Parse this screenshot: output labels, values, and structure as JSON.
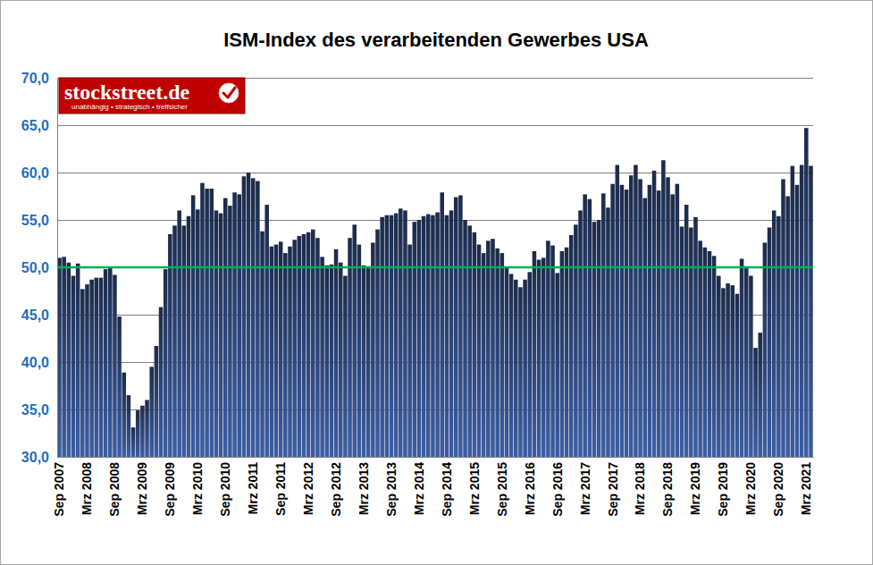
{
  "chart_data": {
    "type": "bar",
    "title": "ISM-Index des verarbeitenden Gewerbes USA",
    "annotations": [
      "stockstreet.de",
      "unabhängig • strategisch • treffsicher"
    ],
    "categories": [
      "Sep 2007",
      null,
      null,
      null,
      null,
      null,
      "Mrz 2008",
      null,
      null,
      null,
      null,
      null,
      "Sep 2008",
      null,
      null,
      null,
      null,
      null,
      "Mrz 2009",
      null,
      null,
      null,
      null,
      null,
      "Sep 2009",
      null,
      null,
      null,
      null,
      null,
      "Mrz 2010",
      null,
      null,
      null,
      null,
      null,
      "Sep 2010",
      null,
      null,
      null,
      null,
      null,
      "Mrz 2011",
      null,
      null,
      null,
      null,
      null,
      "Sep 2011",
      null,
      null,
      null,
      null,
      null,
      "Mrz 2012",
      null,
      null,
      null,
      null,
      null,
      "Sep 2012",
      null,
      null,
      null,
      null,
      null,
      "Mrz 2013",
      null,
      null,
      null,
      null,
      null,
      "Sep 2013",
      null,
      null,
      null,
      null,
      null,
      "Mrz 2014",
      null,
      null,
      null,
      null,
      null,
      "Sep 2014",
      null,
      null,
      null,
      null,
      null,
      "Mrz 2015",
      null,
      null,
      null,
      null,
      null,
      "Sep 2015",
      null,
      null,
      null,
      null,
      null,
      "Mrz 2016",
      null,
      null,
      null,
      null,
      null,
      "Sep 2016",
      null,
      null,
      null,
      null,
      null,
      "Mrz 2017",
      null,
      null,
      null,
      null,
      null,
      "Sep 2017",
      null,
      null,
      null,
      null,
      null,
      "Mrz 2018",
      null,
      null,
      null,
      null,
      null,
      "Sep 2018",
      null,
      null,
      null,
      null,
      null,
      "Mrz 2019",
      null,
      null,
      null,
      null,
      null,
      "Sep 2019",
      null,
      null,
      null,
      null,
      null,
      "Mrz 2020",
      null,
      null,
      null,
      null,
      null,
      "Sep 2020",
      null,
      null,
      null,
      null,
      null,
      "Mrz 2021",
      null
    ],
    "values": [
      51.0,
      51.1,
      50.5,
      49.1,
      50.4,
      47.7,
      48.2,
      48.7,
      48.9,
      48.9,
      49.8,
      50.0,
      49.2,
      44.8,
      38.9,
      36.5,
      33.1,
      34.9,
      35.4,
      36.0,
      39.5,
      41.7,
      45.8,
      49.8,
      53.5,
      54.4,
      56.0,
      54.4,
      55.4,
      57.6,
      56.1,
      58.9,
      58.3,
      58.3,
      56.0,
      55.7,
      57.3,
      56.5,
      57.9,
      57.7,
      59.6,
      60.0,
      59.4,
      59.1,
      53.8,
      56.6,
      52.2,
      52.4,
      52.7,
      51.5,
      52.2,
      52.9,
      53.3,
      53.5,
      53.7,
      54.0,
      53.1,
      51.1,
      50.2,
      50.3,
      51.9,
      50.5,
      49.1,
      53.1,
      54.5,
      52.4,
      50.2,
      50.1,
      52.6,
      54.0,
      55.3,
      55.5,
      55.5,
      55.7,
      56.2,
      56.0,
      52.4,
      54.8,
      55.0,
      55.4,
      55.6,
      55.5,
      55.8,
      57.9,
      55.5,
      56.0,
      57.4,
      57.6,
      55.0,
      54.4,
      53.7,
      52.4,
      51.5,
      52.8,
      53.0,
      52.0,
      51.5,
      50.0,
      49.3,
      48.7,
      47.9,
      48.7,
      49.5,
      51.7,
      50.8,
      51.0,
      52.8,
      52.3,
      49.4,
      51.7,
      52.1,
      53.4,
      54.5,
      56.0,
      57.7,
      57.2,
      54.8,
      55.0,
      57.8,
      56.3,
      58.8,
      60.8,
      58.7,
      58.2,
      59.7,
      60.8,
      59.3,
      57.3,
      58.7,
      60.2,
      58.1,
      61.3,
      59.5,
      57.7,
      58.8,
      54.3,
      56.6,
      54.2,
      55.3,
      52.8,
      52.1,
      51.7,
      51.2,
      49.1,
      47.8,
      48.3,
      48.1,
      47.2,
      50.9,
      50.1,
      49.1,
      41.5,
      43.1,
      52.6,
      54.2,
      56.0,
      55.4,
      59.3,
      57.5,
      60.7,
      58.7,
      60.8,
      64.7,
      60.7
    ],
    "color": "#1c2b4a",
    "threshold": 50,
    "ylim": [
      30,
      70
    ],
    "yticks": [
      {
        "value": 30,
        "label": "30,0"
      },
      {
        "value": 35,
        "label": "35,0"
      },
      {
        "value": 40,
        "label": "40,0"
      },
      {
        "value": 45,
        "label": "45,0"
      },
      {
        "value": 50,
        "label": "50,0"
      },
      {
        "value": 55,
        "label": "55,0"
      },
      {
        "value": 60,
        "label": "60,0"
      },
      {
        "value": 65,
        "label": "65,0"
      },
      {
        "value": 70,
        "label": "70,0"
      }
    ],
    "grid": true
  }
}
